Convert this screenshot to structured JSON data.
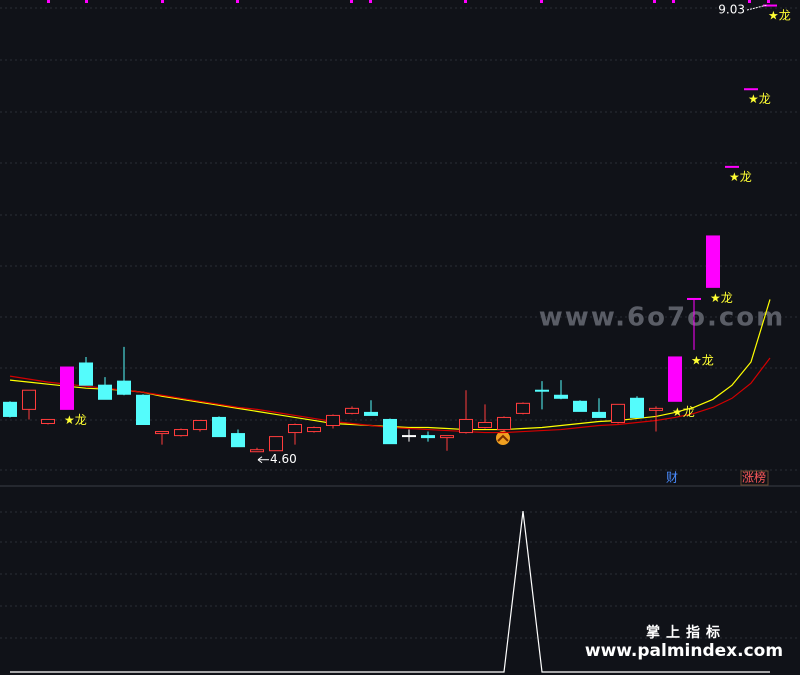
{
  "chart_data": {
    "type": "candlestick",
    "ylim": [
      4.27,
      9.08
    ],
    "open": [
      5.09,
      5.02,
      4.88,
      5.02,
      5.48,
      5.26,
      5.3,
      5.16,
      4.78,
      4.76,
      4.82,
      4.94,
      4.78,
      4.6,
      4.61,
      4.79,
      4.8,
      4.86,
      4.98,
      4.99,
      4.92,
      4.76,
      4.76,
      4.74,
      4.79,
      4.84,
      4.82,
      4.98,
      5.21,
      5.16,
      5.1,
      4.99,
      4.89,
      5.13,
      5.01,
      5.1,
      6.12,
      6.23,
      7.43,
      8.2,
      9.03
    ],
    "high": [
      5.1,
      5.21,
      4.92,
      5.44,
      5.54,
      5.34,
      5.64,
      5.17,
      4.8,
      4.83,
      4.91,
      4.95,
      4.82,
      4.64,
      4.75,
      4.88,
      4.85,
      4.97,
      5.05,
      5.11,
      4.93,
      4.82,
      4.8,
      4.76,
      5.21,
      5.07,
      4.95,
      5.09,
      5.3,
      5.31,
      5.11,
      5.13,
      5.07,
      5.15,
      5.05,
      5.54,
      6.12,
      6.74,
      7.43,
      8.2,
      9.03
    ],
    "low": [
      4.94,
      4.92,
      4.87,
      5.02,
      5.26,
      5.12,
      5.16,
      4.87,
      4.67,
      4.75,
      4.8,
      4.75,
      4.65,
      4.6,
      4.61,
      4.67,
      4.79,
      4.83,
      4.97,
      4.96,
      4.68,
      4.7,
      4.7,
      4.61,
      4.78,
      4.83,
      4.8,
      4.97,
      5.02,
      5.12,
      5.0,
      4.94,
      4.88,
      4.94,
      4.8,
      5.1,
      5.61,
      6.23,
      7.43,
      8.2,
      9.03
    ],
    "close": [
      4.95,
      5.21,
      4.92,
      5.44,
      5.26,
      5.12,
      5.17,
      4.87,
      4.8,
      4.82,
      4.91,
      4.75,
      4.65,
      4.62,
      4.75,
      4.87,
      4.84,
      4.96,
      5.03,
      4.96,
      4.68,
      4.76,
      4.74,
      4.76,
      4.92,
      4.89,
      4.94,
      5.08,
      5.2,
      5.13,
      5.0,
      4.94,
      5.07,
      4.94,
      5.03,
      5.54,
      6.12,
      6.74,
      7.43,
      8.2,
      9.03
    ],
    "up_color": "#ff3c3c",
    "down_color": "#54fcfc",
    "flat_color": "#ffffff",
    "highlight": {
      "color": "#ff00ff",
      "indices": [
        3,
        35,
        36,
        37,
        38,
        39,
        40
      ]
    },
    "series": [
      {
        "color": "#ffff00",
        "values": [
          5.31,
          5.29,
          5.27,
          5.25,
          5.23,
          5.22,
          5.21,
          5.19,
          5.15,
          5.12,
          5.09,
          5.06,
          5.03,
          5.0,
          4.97,
          4.94,
          4.91,
          4.88,
          4.87,
          4.86,
          4.85,
          4.84,
          4.84,
          4.83,
          4.82,
          4.82,
          4.82,
          4.83,
          4.84,
          4.86,
          4.88,
          4.9,
          4.91,
          4.93,
          4.95,
          4.99,
          5.04,
          5.12,
          5.26,
          5.49,
          6.11
        ]
      },
      {
        "color": "#d40000",
        "values": [
          5.35,
          5.32,
          5.29,
          5.27,
          5.25,
          5.23,
          5.21,
          5.19,
          5.16,
          5.13,
          5.1,
          5.07,
          5.04,
          5.02,
          4.99,
          4.96,
          4.93,
          4.9,
          4.88,
          4.86,
          4.84,
          4.83,
          4.82,
          4.81,
          4.8,
          4.79,
          4.79,
          4.8,
          4.81,
          4.82,
          4.84,
          4.86,
          4.87,
          4.89,
          4.91,
          4.94,
          4.98,
          5.04,
          5.13,
          5.28,
          5.53
        ]
      }
    ],
    "annotations": [
      {
        "index": 3,
        "text": "★龙"
      },
      {
        "index": 35,
        "text": "★龙"
      },
      {
        "index": 36,
        "text": "★龙"
      },
      {
        "index": 37,
        "text": "★龙"
      },
      {
        "index": 38,
        "text": "★龙"
      },
      {
        "index": 39,
        "text": "★龙"
      },
      {
        "index": 40,
        "text": "★龙"
      }
    ],
    "extremes": {
      "high": {
        "index": 40,
        "value": 9.03,
        "label": "9.03"
      },
      "low": {
        "index": 13,
        "value": 4.6,
        "label": "4.60"
      }
    },
    "indicator": {
      "color": "#ffffff",
      "ylim": [
        0,
        1.15
      ],
      "values": [
        0,
        0,
        0,
        0,
        0,
        0,
        0,
        0,
        0,
        0,
        0,
        0,
        0,
        0,
        0,
        0,
        0,
        0,
        0,
        0,
        0,
        0,
        0,
        0,
        0,
        0,
        0,
        1,
        0,
        0,
        0,
        0,
        0,
        0,
        0,
        0,
        0,
        0,
        0,
        0,
        0
      ]
    },
    "tags": [
      {
        "text": "财",
        "color": "#4a8cff"
      },
      {
        "text": "涨榜",
        "color": "#ff5a5a"
      }
    ],
    "watermarks": [
      "www.6o7o.com",
      "掌上指标",
      "www.palmindex.com"
    ]
  }
}
